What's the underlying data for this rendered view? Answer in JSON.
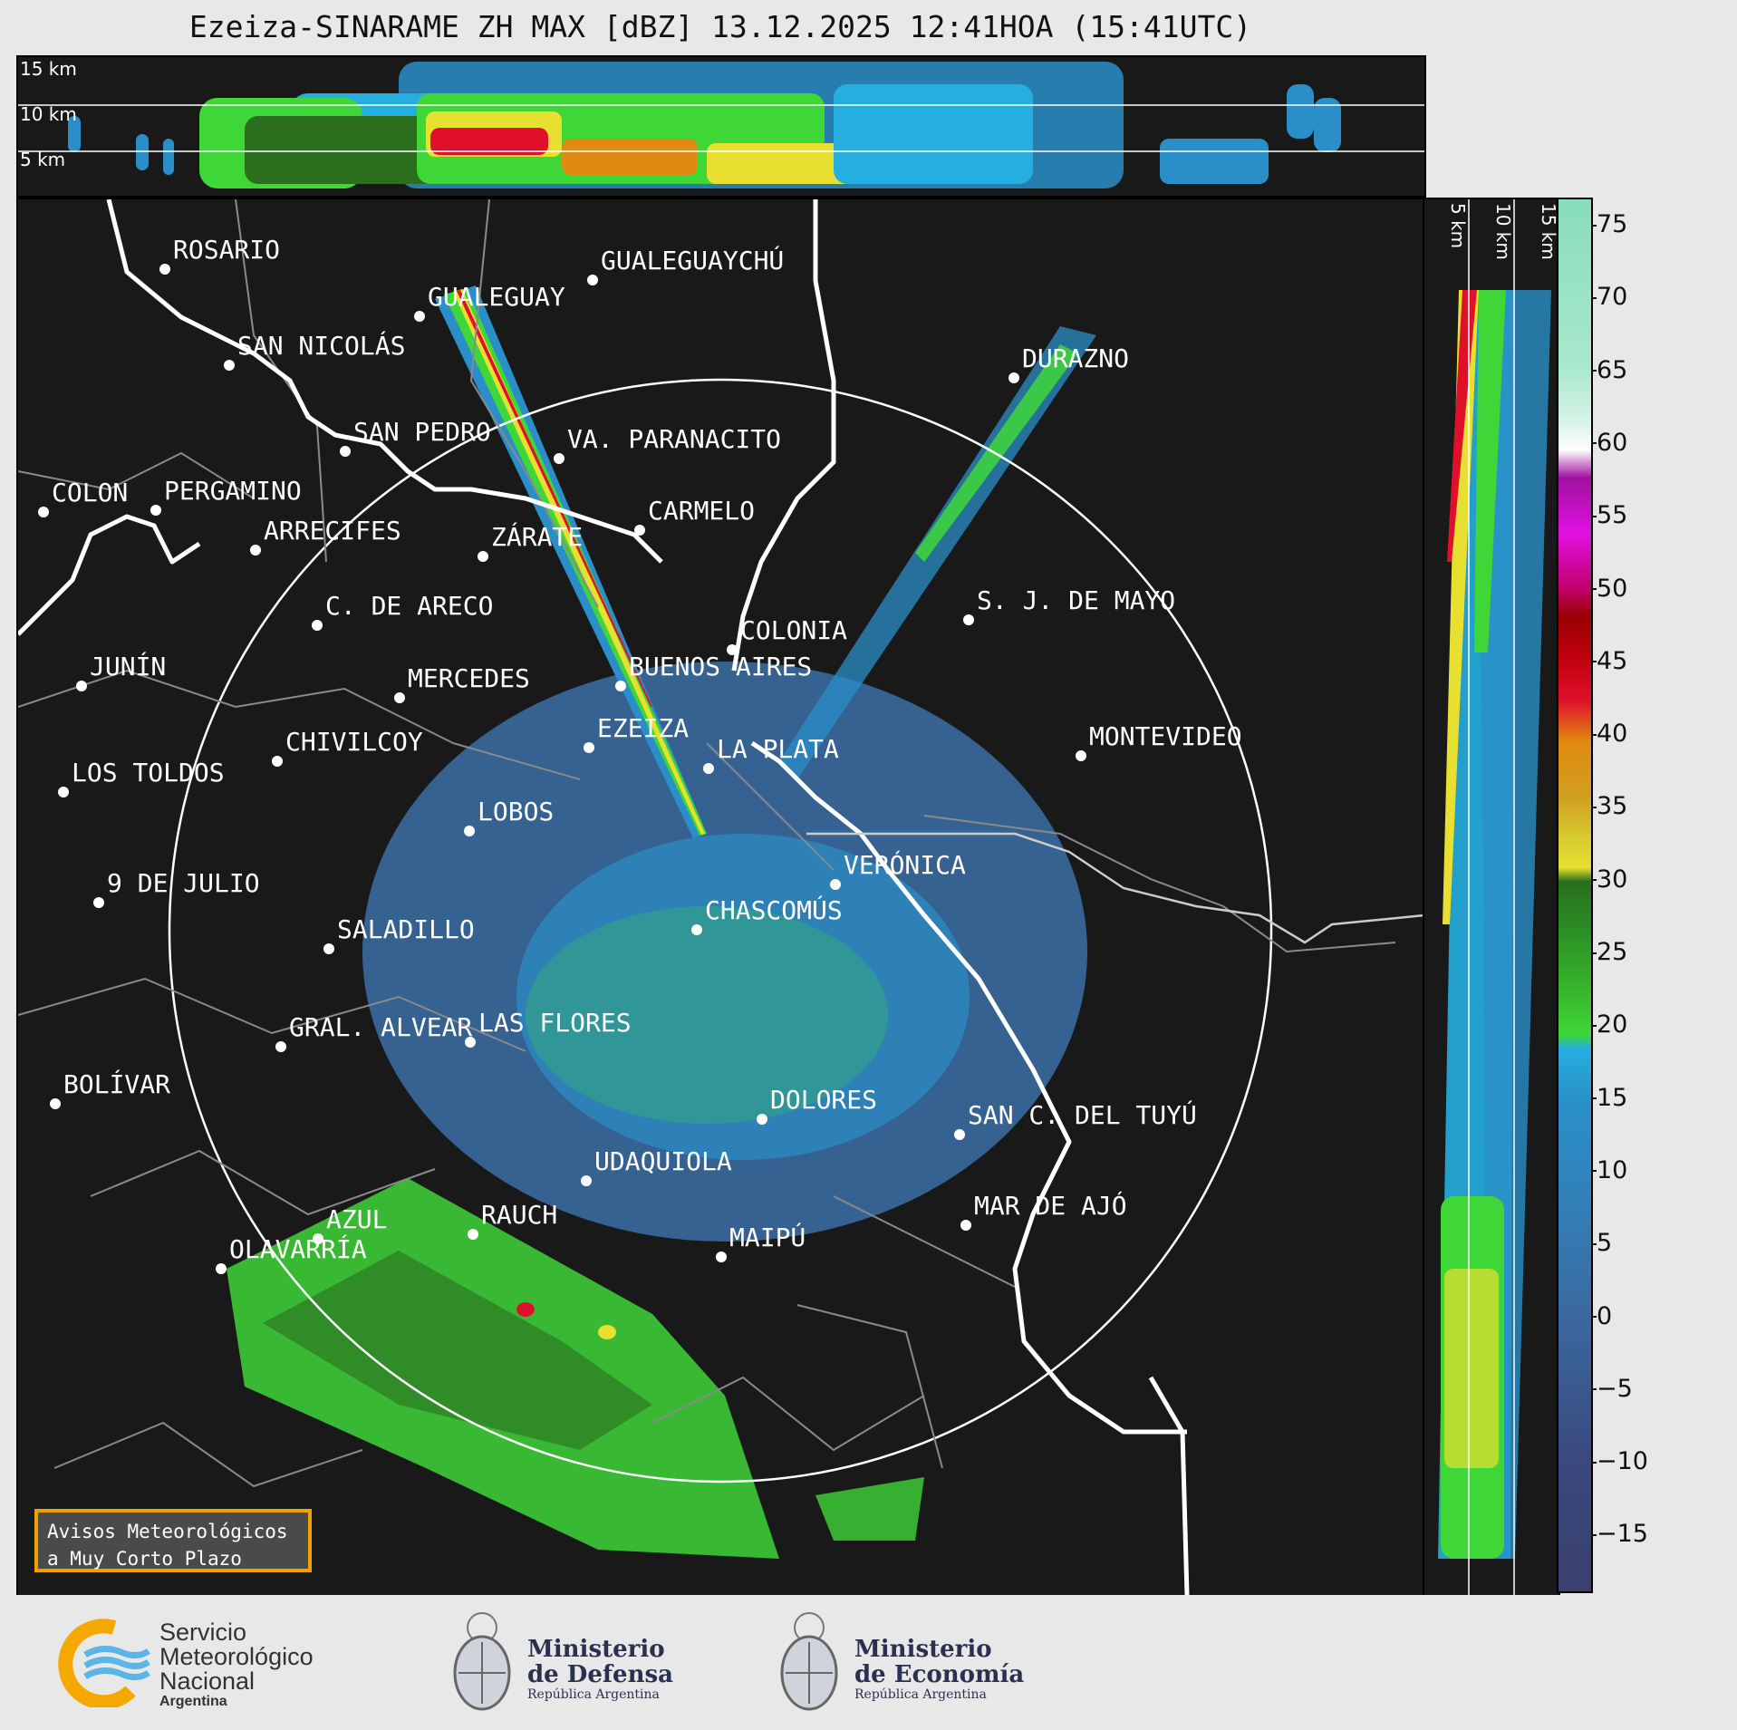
{
  "title": "Ezeiza-SINARAME ZH MAX [dBZ] 13.12.2025 12:41HOA (15:41UTC)",
  "top_panel": {
    "height_labels": [
      "15 km",
      "10 km",
      "5 km"
    ]
  },
  "side_panel": {
    "height_labels": [
      "5 km",
      "10 km",
      "15 km"
    ]
  },
  "colorbar": {
    "unit": "dBZ",
    "ticks": [
      "75",
      "70",
      "65",
      "60",
      "55",
      "50",
      "45",
      "40",
      "35",
      "30",
      "25",
      "20",
      "15",
      "10",
      "5",
      "0",
      "−5",
      "−10",
      "−15"
    ],
    "colors": {
      "vlow": "#3a3f6e",
      "low": "#3a6aa0",
      "blue": "#2a8fc8",
      "cyan": "#25aee0",
      "green": "#3fd638",
      "dgreen": "#2a6e1e",
      "yellow": "#e8e030",
      "orange": "#e08a10",
      "red": "#e0102a",
      "dred": "#9a0000",
      "magenta": "#e010e0",
      "purple": "#a010a0",
      "white": "#ffffff",
      "mint": "#88ddbb"
    }
  },
  "cities": [
    {
      "name": "ROSARIO"
    },
    {
      "name": "GUALEGUAYCHÚ"
    },
    {
      "name": "GUALEGUAY"
    },
    {
      "name": "SAN NICOLÁS"
    },
    {
      "name": "DURAZNO"
    },
    {
      "name": "SAN PEDRO"
    },
    {
      "name": "VA. PARANACITO"
    },
    {
      "name": "COLON"
    },
    {
      "name": "PERGAMINO"
    },
    {
      "name": "CARMELO"
    },
    {
      "name": "ARRECIFES"
    },
    {
      "name": "ZÁRATE"
    },
    {
      "name": "S. J. DE MAYO"
    },
    {
      "name": "C. DE ARECO"
    },
    {
      "name": "COLONIA"
    },
    {
      "name": "BUENOS AIRES"
    },
    {
      "name": "JUNÍN"
    },
    {
      "name": "MERCEDES"
    },
    {
      "name": "EZEIZA"
    },
    {
      "name": "MONTEVIDEO"
    },
    {
      "name": "CHIVILCOY"
    },
    {
      "name": "LA PLATA"
    },
    {
      "name": "LOS TOLDOS"
    },
    {
      "name": "LOBOS"
    },
    {
      "name": "VERÓNICA"
    },
    {
      "name": "9 DE JULIO"
    },
    {
      "name": "CHASCOMÚS"
    },
    {
      "name": "SALADILLO"
    },
    {
      "name": "GRAL. ALVEAR"
    },
    {
      "name": "LAS FLORES"
    },
    {
      "name": "BOLÍVAR"
    },
    {
      "name": "DOLORES"
    },
    {
      "name": "SAN C. DEL TUYÚ"
    },
    {
      "name": "UDAQUIOLA"
    },
    {
      "name": "RAUCH"
    },
    {
      "name": "AZUL"
    },
    {
      "name": "MAR DE AJÓ"
    },
    {
      "name": "OLAVARRÍA"
    },
    {
      "name": "MAIPÚ"
    }
  ],
  "aviso": {
    "line1": "Avisos Meteorológicos",
    "line2": "a Muy Corto Plazo"
  },
  "footer": {
    "smn": {
      "line1": "Servicio",
      "line2": "Meteorológico",
      "line3": "Nacional",
      "line4": "Argentina"
    },
    "defensa": {
      "line1": "Ministerio",
      "line2": "de Defensa",
      "line3": "República Argentina"
    },
    "economia": {
      "line1": "Ministerio",
      "line2": "de Economía",
      "line3": "República Argentina"
    }
  }
}
